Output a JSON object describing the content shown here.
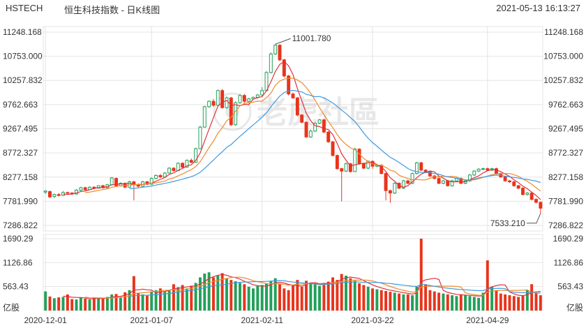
{
  "header": {
    "symbol": "HSTECH",
    "name": "恒生科技指数 - 日K线图",
    "timestamp": "2021-05-13 16:13:27"
  },
  "watermark": "老虎社區",
  "colors": {
    "up": "#22a05a",
    "down": "#e8341c",
    "ma5": "#e0303a",
    "ma10": "#f08a2c",
    "ma20": "#3d9be0",
    "grid": "#e4e4e4",
    "text": "#333333"
  },
  "chart_data": [
    {
      "type": "candlestick",
      "title": "",
      "price_axis": {
        "ticks": [
          "11248.168",
          "10753.000",
          "10257.832",
          "9762.663",
          "9267.495",
          "8772.327",
          "8277.158",
          "7781.990",
          "7286.822"
        ],
        "ylim": [
          7286.822,
          11248.168
        ]
      },
      "x_axis": {
        "tick_labels": [
          {
            "label": "2020-12-01",
            "index": 0
          },
          {
            "label": "2021-01-07",
            "index": 24
          },
          {
            "label": "2021-02-11",
            "index": 49
          },
          {
            "label": "2021-03-22",
            "index": 74
          },
          {
            "label": "2021-04-29",
            "index": 100
          }
        ]
      },
      "annotations": [
        {
          "label": "11001.780",
          "type": "high",
          "index": 52,
          "value": 11001.78
        },
        {
          "label": "7533.210",
          "type": "low",
          "index": 112,
          "value": 7533.21
        }
      ],
      "moving_averages": [
        "MA5",
        "MA10",
        "MA20"
      ],
      "candles": [
        [
          7970,
          7990,
          7930,
          8010
        ],
        [
          7980,
          7870,
          7850,
          8000
        ],
        [
          7880,
          7920,
          7850,
          7940
        ],
        [
          7920,
          7900,
          7880,
          7950
        ],
        [
          7900,
          7960,
          7890,
          7990
        ],
        [
          7960,
          7950,
          7920,
          7980
        ],
        [
          7950,
          7930,
          7910,
          7970
        ],
        [
          7930,
          8010,
          7920,
          8030
        ],
        [
          8010,
          8060,
          7980,
          8080
        ],
        [
          8060,
          8020,
          8000,
          8080
        ],
        [
          8020,
          8070,
          8010,
          8090
        ],
        [
          8070,
          8050,
          8030,
          8090
        ],
        [
          8050,
          8100,
          8040,
          8110
        ],
        [
          8100,
          8060,
          8040,
          8120
        ],
        [
          8060,
          8120,
          8050,
          8140
        ],
        [
          8120,
          8260,
          8110,
          8280
        ],
        [
          8250,
          8100,
          8070,
          8270
        ],
        [
          8100,
          8150,
          8080,
          8170
        ],
        [
          8150,
          8070,
          8050,
          8170
        ],
        [
          8070,
          8180,
          8060,
          8200
        ],
        [
          8180,
          8120,
          7800,
          8200
        ],
        [
          8120,
          8090,
          8060,
          8150
        ],
        [
          8090,
          8180,
          8080,
          8200
        ],
        [
          8180,
          8130,
          8110,
          8200
        ],
        [
          8130,
          8250,
          8120,
          8270
        ],
        [
          8250,
          8310,
          8230,
          8330
        ],
        [
          8310,
          8280,
          8260,
          8340
        ],
        [
          8280,
          8360,
          8270,
          8380
        ],
        [
          8360,
          8460,
          8350,
          8480
        ],
        [
          8460,
          8410,
          8390,
          8480
        ],
        [
          8410,
          8560,
          8400,
          8580
        ],
        [
          8560,
          8480,
          8460,
          8580
        ],
        [
          8480,
          8620,
          8470,
          8640
        ],
        [
          8620,
          8580,
          8560,
          8660
        ],
        [
          8580,
          8860,
          8570,
          8880
        ],
        [
          8860,
          9300,
          8850,
          9330
        ],
        [
          9300,
          9720,
          9290,
          9740
        ],
        [
          9720,
          9830,
          9700,
          9850
        ],
        [
          9830,
          9750,
          9720,
          9880
        ],
        [
          9750,
          10050,
          9740,
          10070
        ],
        [
          10050,
          9700,
          9680,
          10080
        ],
        [
          9700,
          9900,
          9680,
          9930
        ],
        [
          9900,
          9350,
          9320,
          9920
        ],
        [
          9350,
          9800,
          9330,
          9830
        ],
        [
          9800,
          9950,
          9780,
          9980
        ],
        [
          9950,
          9830,
          9800,
          9980
        ],
        [
          9830,
          9880,
          9800,
          9900
        ],
        [
          9880,
          9910,
          9860,
          9930
        ],
        [
          9910,
          9960,
          9890,
          9980
        ],
        [
          9960,
          10050,
          9940,
          10120
        ],
        [
          10050,
          10420,
          10040,
          10450
        ],
        [
          10420,
          10800,
          10400,
          10830
        ],
        [
          10800,
          10980,
          10780,
          11001.78
        ],
        [
          10980,
          10680,
          10650,
          11000
        ],
        [
          10680,
          10350,
          10320,
          10700
        ],
        [
          10350,
          9980,
          9950,
          10370
        ],
        [
          9980,
          9900,
          9880,
          10010
        ],
        [
          9900,
          9550,
          9520,
          9920
        ],
        [
          9550,
          9400,
          9380,
          9570
        ],
        [
          9400,
          9100,
          9080,
          9420
        ],
        [
          9100,
          9220,
          9080,
          9250
        ],
        [
          9220,
          9380,
          9200,
          9400
        ],
        [
          9380,
          9450,
          9360,
          9470
        ],
        [
          9450,
          9200,
          9180,
          9470
        ],
        [
          9200,
          9000,
          8980,
          9220
        ],
        [
          9000,
          8720,
          8700,
          9020
        ],
        [
          8720,
          8450,
          8430,
          8740
        ],
        [
          8450,
          8400,
          7780,
          8470
        ],
        [
          8400,
          8550,
          8380,
          8580
        ],
        [
          8550,
          8390,
          8370,
          8570
        ],
        [
          8390,
          8850,
          8380,
          8880
        ],
        [
          8850,
          8550,
          8530,
          8870
        ],
        [
          8550,
          8460,
          8440,
          8570
        ],
        [
          8460,
          8600,
          8440,
          8620
        ],
        [
          8600,
          8500,
          8450,
          8620
        ],
        [
          8500,
          8520,
          8480,
          8550
        ],
        [
          8520,
          8350,
          8330,
          8540
        ],
        [
          8350,
          8000,
          7800,
          8370
        ],
        [
          8000,
          7950,
          7750,
          8020
        ],
        [
          7950,
          8150,
          7930,
          8170
        ],
        [
          8150,
          8050,
          8030,
          8170
        ],
        [
          8050,
          8200,
          8030,
          8220
        ],
        [
          8200,
          8150,
          8130,
          8220
        ],
        [
          8150,
          8350,
          8130,
          8370
        ],
        [
          8350,
          8570,
          8330,
          8590
        ],
        [
          8570,
          8420,
          8400,
          8590
        ],
        [
          8420,
          8380,
          8360,
          8440
        ],
        [
          8380,
          8300,
          8280,
          8400
        ],
        [
          8300,
          8250,
          8230,
          8320
        ],
        [
          8250,
          8150,
          8130,
          8270
        ],
        [
          8150,
          8200,
          8130,
          8220
        ],
        [
          8200,
          8100,
          8080,
          8220
        ],
        [
          8100,
          8200,
          8080,
          8220
        ],
        [
          8200,
          8250,
          8180,
          8270
        ],
        [
          8250,
          8150,
          8130,
          8270
        ],
        [
          8150,
          8200,
          8130,
          8220
        ],
        [
          8200,
          8320,
          8180,
          8340
        ],
        [
          8320,
          8400,
          8300,
          8420
        ],
        [
          8400,
          8440,
          8380,
          8460
        ],
        [
          8440,
          8450,
          8420,
          8470
        ],
        [
          8450,
          8420,
          8400,
          8470
        ],
        [
          8420,
          8450,
          8400,
          8470
        ],
        [
          8450,
          8350,
          8330,
          8470
        ],
        [
          8350,
          8280,
          8260,
          8370
        ],
        [
          8280,
          8200,
          8180,
          8300
        ],
        [
          8200,
          8180,
          8160,
          8220
        ],
        [
          8180,
          8100,
          8080,
          8200
        ],
        [
          8100,
          8050,
          8030,
          8120
        ],
        [
          8050,
          7920,
          7900,
          8070
        ],
        [
          7920,
          7950,
          7900,
          7970
        ],
        [
          7950,
          7820,
          7800,
          7970
        ],
        [
          7820,
          7760,
          7740,
          7840
        ],
        [
          7760,
          7640,
          7533.21,
          7780
        ]
      ],
      "volume_axis": {
        "unit": "亿股",
        "ticks": [
          "1690.29",
          "1126.86",
          "563.43"
        ],
        "ylim": [
          0,
          1690.29
        ]
      },
      "volume": [
        450,
        330,
        290,
        310,
        320,
        380,
        270,
        260,
        300,
        280,
        260,
        310,
        290,
        280,
        320,
        380,
        390,
        300,
        430,
        480,
        810,
        420,
        380,
        350,
        450,
        480,
        520,
        440,
        480,
        620,
        550,
        600,
        520,
        580,
        650,
        780,
        870,
        900,
        780,
        820,
        880,
        760,
        720,
        690,
        650,
        620,
        560,
        520,
        580,
        600,
        640,
        700,
        760,
        620,
        520,
        480,
        600,
        720,
        560,
        700,
        660,
        640,
        580,
        620,
        680,
        780,
        720,
        860,
        820,
        760,
        700,
        640,
        600,
        560,
        520,
        500,
        480,
        460,
        440,
        420,
        400,
        380,
        380,
        360,
        560,
        1690,
        620,
        480,
        450,
        420,
        400,
        380,
        360,
        340,
        380,
        360,
        340,
        320,
        300,
        420,
        1180,
        560,
        480,
        400,
        380,
        360,
        340,
        320,
        360,
        480,
        620,
        420,
        360
      ]
    }
  ]
}
